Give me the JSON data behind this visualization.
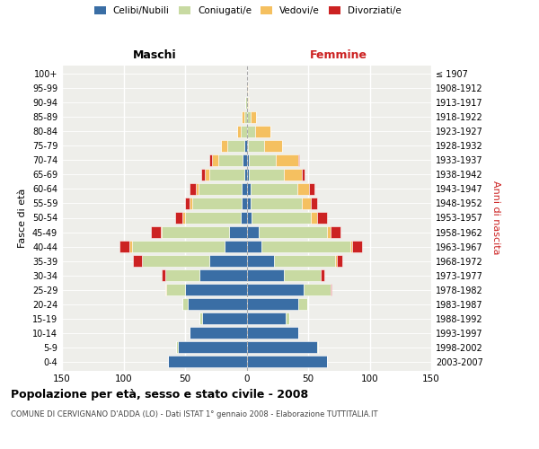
{
  "age_groups": [
    "0-4",
    "5-9",
    "10-14",
    "15-19",
    "20-24",
    "25-29",
    "30-34",
    "35-39",
    "40-44",
    "45-49",
    "50-54",
    "55-59",
    "60-64",
    "65-69",
    "70-74",
    "75-79",
    "80-84",
    "85-89",
    "90-94",
    "95-99",
    "100+"
  ],
  "birth_years": [
    "2003-2007",
    "1998-2002",
    "1993-1997",
    "1988-1992",
    "1983-1987",
    "1978-1982",
    "1973-1977",
    "1968-1972",
    "1963-1967",
    "1958-1962",
    "1953-1957",
    "1948-1952",
    "1943-1947",
    "1938-1942",
    "1933-1937",
    "1928-1932",
    "1923-1927",
    "1918-1922",
    "1913-1917",
    "1908-1912",
    "≤ 1907"
  ],
  "male_celibi": [
    64,
    56,
    46,
    36,
    48,
    50,
    38,
    30,
    18,
    14,
    5,
    4,
    4,
    2,
    3,
    2,
    0,
    0,
    0,
    0,
    0
  ],
  "male_coniugati": [
    0,
    1,
    0,
    2,
    4,
    15,
    28,
    55,
    75,
    55,
    45,
    40,
    35,
    28,
    20,
    14,
    5,
    2,
    1,
    0,
    0
  ],
  "male_vedovi": [
    0,
    0,
    0,
    0,
    0,
    1,
    0,
    0,
    2,
    1,
    2,
    2,
    2,
    4,
    5,
    5,
    3,
    2,
    0,
    0,
    0
  ],
  "male_divorziati": [
    0,
    0,
    0,
    0,
    0,
    0,
    3,
    7,
    8,
    8,
    6,
    4,
    5,
    3,
    2,
    0,
    0,
    0,
    0,
    0,
    0
  ],
  "female_nubili": [
    65,
    57,
    42,
    32,
    42,
    46,
    30,
    22,
    12,
    10,
    4,
    3,
    3,
    2,
    2,
    1,
    0,
    0,
    0,
    0,
    0
  ],
  "female_coniugate": [
    0,
    1,
    0,
    3,
    7,
    22,
    30,
    50,
    72,
    55,
    48,
    42,
    38,
    28,
    22,
    13,
    7,
    3,
    1,
    0,
    0
  ],
  "female_vedove": [
    0,
    0,
    0,
    0,
    0,
    0,
    0,
    1,
    2,
    3,
    5,
    7,
    10,
    15,
    18,
    15,
    12,
    5,
    1,
    1,
    0
  ],
  "female_divorziate": [
    0,
    0,
    0,
    0,
    0,
    1,
    3,
    5,
    8,
    8,
    8,
    5,
    4,
    2,
    1,
    0,
    0,
    0,
    0,
    0,
    0
  ],
  "color_celibi": "#3a6ea5",
  "color_coniugati": "#c8daa2",
  "color_vedovi": "#f5c060",
  "color_divorziati": "#cc2222",
  "xlim": 150,
  "title": "Popolazione per età, sesso e stato civile - 2008",
  "subtitle": "COMUNE DI CERVIGNANO D'ADDA (LO) - Dati ISTAT 1° gennaio 2008 - Elaborazione TUTTITALIA.IT",
  "ylabel_left": "Fasce di età",
  "ylabel_right": "Anni di nascita",
  "label_maschi": "Maschi",
  "label_femmine": "Femmine",
  "legend_labels": [
    "Celibi/Nubili",
    "Coniugati/e",
    "Vedovi/e",
    "Divorziati/e"
  ],
  "bg_color": "#eeeeea"
}
